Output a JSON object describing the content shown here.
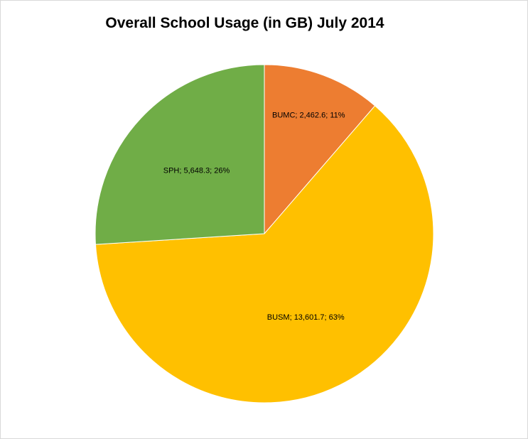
{
  "chart_data": {
    "type": "pie",
    "title": "Overall School Usage (in GB) July 2014",
    "slices": [
      {
        "name": "BUMC",
        "value": 2462.6,
        "value_label": "2,462.6",
        "percent_label": "11%",
        "color": "#ed7d31"
      },
      {
        "name": "BUSM",
        "value": 13601.7,
        "value_label": "13,601.7",
        "percent_label": "63%",
        "color": "#ffc000"
      },
      {
        "name": "SPH",
        "value": 5648.3,
        "value_label": "5,648.3",
        "percent_label": "26%",
        "color": "#70ad47"
      }
    ],
    "label_separator": "; ",
    "legend": "none"
  }
}
